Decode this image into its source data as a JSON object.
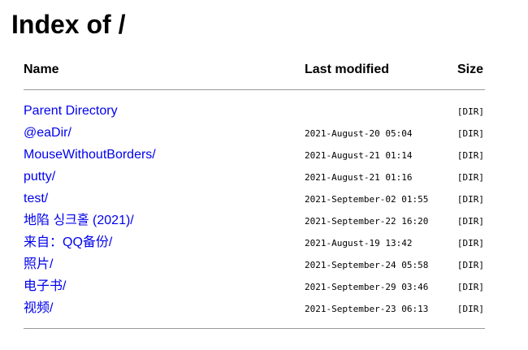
{
  "title": "Index of /",
  "columns": {
    "name": "Name",
    "last_modified": "Last modified",
    "size": "Size"
  },
  "link_color": "#0000ee",
  "rows": [
    {
      "name": "Parent Directory",
      "date": "",
      "size": "[DIR]"
    },
    {
      "name": "@eaDir/",
      "date": "2021-August-20 05:04",
      "size": "[DIR]"
    },
    {
      "name": "MouseWithoutBorders/",
      "date": "2021-August-21 01:14",
      "size": "[DIR]"
    },
    {
      "name": "putty/",
      "date": "2021-August-21 01:16",
      "size": "[DIR]"
    },
    {
      "name": "test/",
      "date": "2021-September-02 01:55",
      "size": "[DIR]"
    },
    {
      "name": "地陷 싱크홀 (2021)/",
      "date": "2021-September-22 16:20",
      "size": "[DIR]"
    },
    {
      "name": "来自：QQ备份/",
      "date": "2021-August-19 13:42",
      "size": "[DIR]"
    },
    {
      "name": "照片/",
      "date": "2021-September-24 05:58",
      "size": "[DIR]"
    },
    {
      "name": "电子书/",
      "date": "2021-September-29 03:46",
      "size": "[DIR]"
    },
    {
      "name": "视频/",
      "date": "2021-September-23 06:13",
      "size": "[DIR]"
    }
  ]
}
